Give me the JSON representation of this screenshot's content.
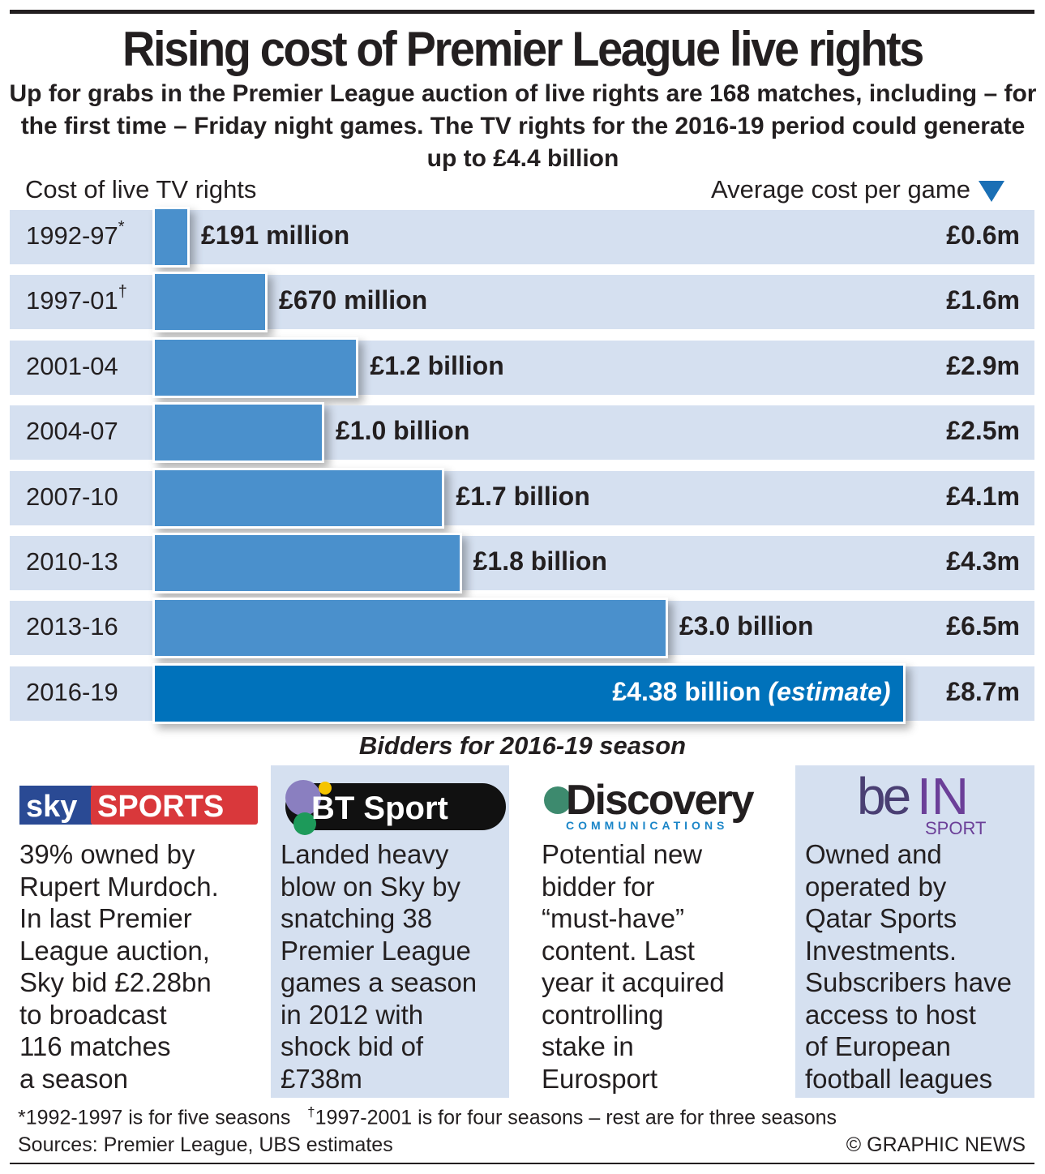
{
  "title": "Rising cost of Premier League live rights",
  "subtitle": "Up for grabs in the Premier League auction of live rights are 168 matches, including – for the first time – Friday night games. The TV rights for the 2016-19 period could generate up to £4.4 billion",
  "chart_data": {
    "type": "bar",
    "orientation": "horizontal",
    "left_header": "Cost of live TV rights",
    "right_header": "Average cost per game",
    "unit": "£ billion",
    "categories": [
      "1992-97",
      "1997-01",
      "2001-04",
      "2004-07",
      "2007-10",
      "2010-13",
      "2013-16",
      "2016-19"
    ],
    "footnote_marks": [
      "*",
      "†",
      "",
      "",
      "",
      "",
      "",
      ""
    ],
    "values": [
      0.191,
      0.67,
      1.2,
      1.0,
      1.7,
      1.8,
      3.0,
      4.38
    ],
    "value_labels": [
      "£191 million",
      "£670 million",
      "£1.2 billion",
      "£1.0 billion",
      "£1.7 billion",
      "£1.8 billion",
      "£3.0 billion",
      "£4.38 billion"
    ],
    "estimate_note": "(estimate)",
    "avg_cost_per_game": [
      "£0.6m",
      "£1.6m",
      "£2.9m",
      "£2.5m",
      "£4.1m",
      "£4.3m",
      "£6.5m",
      "£8.7m"
    ],
    "colors": {
      "bar": "#4a90cc",
      "estimate_bar": "#0072bb",
      "row": "#d5e0f0"
    }
  },
  "bidders": {
    "heading": "Bidders for 2016-19 season",
    "items": [
      {
        "logo": "Sky SPORTS",
        "lines": [
          "39% owned by",
          "Rupert Murdoch.",
          "In last Premier",
          "League auction,",
          "Sky bid £2.28bn",
          "to broadcast",
          "116 matches",
          "a season"
        ]
      },
      {
        "logo": "BT Sport",
        "lines": [
          "Landed heavy",
          "blow on Sky by",
          "snatching 38",
          "Premier League",
          "games a season",
          "in 2012 with",
          "shock bid of",
          "£738m"
        ]
      },
      {
        "logo": "Discovery COMMUNICATIONS",
        "lines": [
          "Potential new",
          "bidder for",
          "“must-have”",
          "content. Last",
          "year it acquired",
          "controlling",
          "stake in",
          "Eurosport"
        ]
      },
      {
        "logo": "beIN SPORT",
        "lines": [
          "Owned and",
          "operated by",
          "Qatar Sports",
          "Investments.",
          "Subscribers have",
          "access to host",
          "of European",
          "football leagues"
        ]
      }
    ]
  },
  "footnotes": {
    "f1": "*1992-1997 is for five seasons",
    "f2_mark": "†",
    "f2": "1997-2001 is for four seasons – rest are for three seasons",
    "sources": "Sources: Premier League, UBS estimates",
    "credit": "© GRAPHIC NEWS"
  }
}
